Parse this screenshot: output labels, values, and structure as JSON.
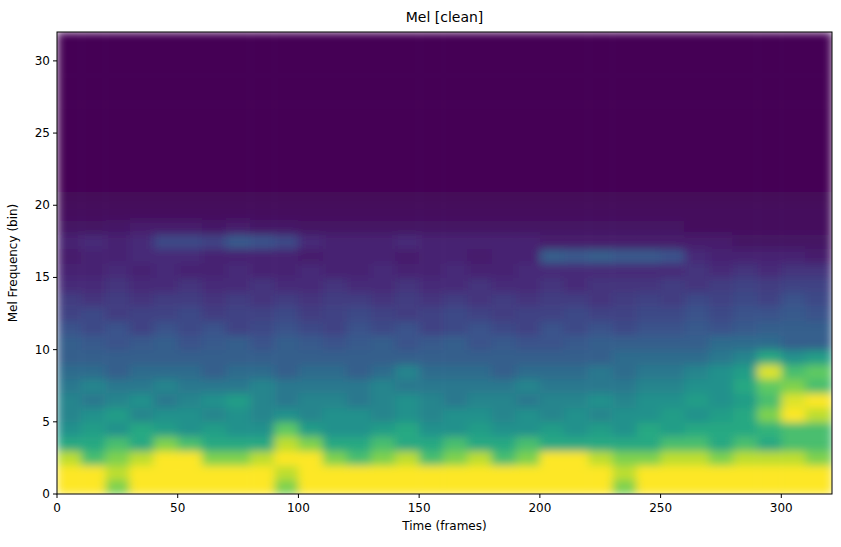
{
  "chart_data": {
    "type": "heatmap",
    "title": "Mel [clean]",
    "x_label": "Time (frames)",
    "y_label": "Mel Frequency (bin)",
    "xlim": [
      0,
      321
    ],
    "ylim": [
      0,
      32
    ],
    "xticks": [
      0,
      50,
      100,
      150,
      200,
      250,
      300
    ],
    "yticks": [
      0,
      5,
      10,
      15,
      20,
      25,
      30
    ],
    "zlim": [
      0,
      1
    ],
    "x_edges": [
      0,
      10,
      20,
      30,
      40,
      50,
      60,
      70,
      80,
      90,
      100,
      110,
      120,
      130,
      140,
      150,
      160,
      170,
      180,
      190,
      200,
      210,
      220,
      230,
      240,
      250,
      260,
      270,
      280,
      290,
      300,
      310,
      321
    ],
    "values": [
      [
        1,
        1,
        0.8,
        1,
        1,
        1,
        1,
        1,
        1,
        0.8,
        1,
        1,
        1,
        1,
        1,
        1,
        1,
        1,
        1,
        1,
        1,
        1,
        1,
        0.8,
        1,
        1,
        1,
        1,
        1,
        1,
        1,
        1
      ],
      [
        1,
        1,
        0.9,
        1,
        1,
        1,
        1,
        1,
        1,
        0.9,
        1,
        1,
        1,
        1,
        1,
        1,
        1,
        1,
        1,
        1,
        1,
        1,
        1,
        0.9,
        1,
        1,
        1,
        1,
        1,
        1,
        1,
        1
      ],
      [
        0.9,
        0.7,
        0.8,
        0.9,
        1,
        1,
        0.8,
        0.8,
        0.9,
        1,
        1,
        0.8,
        0.7,
        0.8,
        0.9,
        0.7,
        0.8,
        0.9,
        0.7,
        0.8,
        1,
        1,
        0.9,
        0.8,
        0.8,
        0.9,
        0.9,
        0.8,
        0.9,
        0.9,
        0.9,
        0.8
      ],
      [
        0.6,
        0.6,
        0.7,
        0.6,
        0.8,
        0.7,
        0.6,
        0.6,
        0.6,
        0.9,
        0.8,
        0.6,
        0.6,
        0.7,
        0.6,
        0.6,
        0.7,
        0.6,
        0.6,
        0.7,
        0.6,
        0.6,
        0.6,
        0.6,
        0.6,
        0.7,
        0.7,
        0.6,
        0.7,
        0.6,
        0.7,
        0.7
      ],
      [
        0.5,
        0.55,
        0.5,
        0.6,
        0.55,
        0.5,
        0.55,
        0.5,
        0.5,
        0.75,
        0.55,
        0.5,
        0.5,
        0.55,
        0.6,
        0.5,
        0.5,
        0.55,
        0.5,
        0.5,
        0.55,
        0.5,
        0.55,
        0.5,
        0.6,
        0.55,
        0.6,
        0.6,
        0.6,
        0.65,
        0.7,
        0.7
      ],
      [
        0.45,
        0.5,
        0.55,
        0.45,
        0.5,
        0.5,
        0.45,
        0.5,
        0.45,
        0.5,
        0.45,
        0.5,
        0.5,
        0.45,
        0.5,
        0.45,
        0.5,
        0.5,
        0.45,
        0.5,
        0.45,
        0.5,
        0.45,
        0.5,
        0.5,
        0.55,
        0.5,
        0.55,
        0.6,
        0.8,
        1,
        0.9
      ],
      [
        0.45,
        0.4,
        0.45,
        0.5,
        0.4,
        0.45,
        0.5,
        0.55,
        0.45,
        0.4,
        0.45,
        0.45,
        0.4,
        0.45,
        0.5,
        0.45,
        0.4,
        0.45,
        0.45,
        0.4,
        0.45,
        0.45,
        0.5,
        0.45,
        0.5,
        0.5,
        0.55,
        0.5,
        0.55,
        0.7,
        0.95,
        1
      ],
      [
        0.4,
        0.45,
        0.4,
        0.4,
        0.45,
        0.4,
        0.4,
        0.4,
        0.45,
        0.4,
        0.4,
        0.4,
        0.4,
        0.45,
        0.4,
        0.4,
        0.4,
        0.4,
        0.4,
        0.45,
        0.4,
        0.4,
        0.4,
        0.4,
        0.45,
        0.45,
        0.5,
        0.5,
        0.6,
        0.75,
        0.8,
        0.7
      ],
      [
        0.35,
        0.35,
        0.3,
        0.35,
        0.35,
        0.35,
        0.3,
        0.35,
        0.35,
        0.3,
        0.35,
        0.35,
        0.3,
        0.35,
        0.45,
        0.35,
        0.35,
        0.35,
        0.3,
        0.35,
        0.35,
        0.35,
        0.4,
        0.35,
        0.4,
        0.4,
        0.45,
        0.5,
        0.55,
        0.95,
        0.7,
        0.75
      ],
      [
        0.3,
        0.3,
        0.3,
        0.3,
        0.3,
        0.3,
        0.3,
        0.3,
        0.3,
        0.3,
        0.3,
        0.3,
        0.3,
        0.3,
        0.3,
        0.3,
        0.3,
        0.3,
        0.3,
        0.3,
        0.3,
        0.3,
        0.3,
        0.35,
        0.35,
        0.35,
        0.35,
        0.4,
        0.45,
        0.6,
        0.5,
        0.55
      ],
      [
        0.3,
        0.28,
        0.25,
        0.28,
        0.3,
        0.25,
        0.28,
        0.3,
        0.25,
        0.3,
        0.28,
        0.25,
        0.28,
        0.3,
        0.25,
        0.28,
        0.3,
        0.25,
        0.28,
        0.25,
        0.25,
        0.28,
        0.3,
        0.3,
        0.3,
        0.3,
        0.3,
        0.35,
        0.35,
        0.35,
        0.3,
        0.3
      ],
      [
        0.25,
        0.22,
        0.25,
        0.2,
        0.25,
        0.22,
        0.25,
        0.2,
        0.22,
        0.25,
        0.22,
        0.2,
        0.25,
        0.22,
        0.25,
        0.2,
        0.22,
        0.25,
        0.22,
        0.2,
        0.25,
        0.22,
        0.25,
        0.22,
        0.25,
        0.25,
        0.28,
        0.25,
        0.28,
        0.3,
        0.3,
        0.3
      ],
      [
        0.2,
        0.22,
        0.18,
        0.2,
        0.2,
        0.22,
        0.18,
        0.2,
        0.2,
        0.22,
        0.18,
        0.2,
        0.22,
        0.2,
        0.18,
        0.2,
        0.22,
        0.2,
        0.18,
        0.2,
        0.2,
        0.22,
        0.2,
        0.2,
        0.22,
        0.22,
        0.25,
        0.22,
        0.25,
        0.25,
        0.28,
        0.25
      ],
      [
        0.18,
        0.15,
        0.18,
        0.15,
        0.18,
        0.18,
        0.15,
        0.18,
        0.15,
        0.18,
        0.15,
        0.18,
        0.18,
        0.15,
        0.18,
        0.15,
        0.18,
        0.15,
        0.18,
        0.15,
        0.18,
        0.18,
        0.15,
        0.18,
        0.2,
        0.18,
        0.22,
        0.2,
        0.22,
        0.2,
        0.25,
        0.22
      ],
      [
        0.12,
        0.12,
        0.15,
        0.12,
        0.12,
        0.15,
        0.12,
        0.12,
        0.15,
        0.12,
        0.12,
        0.15,
        0.12,
        0.12,
        0.15,
        0.12,
        0.12,
        0.15,
        0.12,
        0.12,
        0.15,
        0.12,
        0.15,
        0.15,
        0.15,
        0.18,
        0.15,
        0.18,
        0.2,
        0.18,
        0.2,
        0.2
      ],
      [
        0.1,
        0.1,
        0.12,
        0.1,
        0.12,
        0.1,
        0.1,
        0.12,
        0.1,
        0.1,
        0.12,
        0.1,
        0.1,
        0.12,
        0.1,
        0.1,
        0.12,
        0.1,
        0.1,
        0.12,
        0.12,
        0.12,
        0.12,
        0.12,
        0.12,
        0.12,
        0.15,
        0.12,
        0.15,
        0.12,
        0.15,
        0.15
      ],
      [
        0.08,
        0.1,
        0.1,
        0.12,
        0.12,
        0.12,
        0.1,
        0.1,
        0.1,
        0.1,
        0.08,
        0.1,
        0.1,
        0.1,
        0.08,
        0.1,
        0.1,
        0.08,
        0.1,
        0.1,
        0.3,
        0.28,
        0.3,
        0.28,
        0.28,
        0.25,
        0.12,
        0.1,
        0.1,
        0.1,
        0.1,
        0.08
      ],
      [
        0.1,
        0.12,
        0.1,
        0.12,
        0.22,
        0.22,
        0.2,
        0.28,
        0.25,
        0.22,
        0.12,
        0.1,
        0.1,
        0.1,
        0.12,
        0.1,
        0.1,
        0.1,
        0.1,
        0.1,
        0.08,
        0.08,
        0.08,
        0.08,
        0.08,
        0.08,
        0.08,
        0.08,
        0.05,
        0.05,
        0.05,
        0.05
      ],
      [
        0.05,
        0.05,
        0.06,
        0.08,
        0.08,
        0.08,
        0.06,
        0.08,
        0.06,
        0.06,
        0.05,
        0.05,
        0.05,
        0.05,
        0.05,
        0.05,
        0.05,
        0.05,
        0.05,
        0.05,
        0.05,
        0.05,
        0.05,
        0.05,
        0.05,
        0.05,
        0.03,
        0.03,
        0.03,
        0.03,
        0.03,
        0.03
      ],
      [
        0.03,
        0.03,
        0.03,
        0.03,
        0.03,
        0.03,
        0.03,
        0.03,
        0.03,
        0.03,
        0.03,
        0.03,
        0.03,
        0.03,
        0.03,
        0.03,
        0.03,
        0.03,
        0.03,
        0.03,
        0.03,
        0.03,
        0.03,
        0.03,
        0.03,
        0.03,
        0.03,
        0.03,
        0.03,
        0.03,
        0.03,
        0.03
      ],
      [
        0.02,
        0.02,
        0.02,
        0.02,
        0.02,
        0.02,
        0.02,
        0.02,
        0.02,
        0.02,
        0.02,
        0.02,
        0.02,
        0.02,
        0.02,
        0.02,
        0.02,
        0.02,
        0.02,
        0.02,
        0.02,
        0.02,
        0.02,
        0.02,
        0.02,
        0.02,
        0.02,
        0.02,
        0.02,
        0.02,
        0.02,
        0.02
      ],
      [
        0,
        0,
        0,
        0,
        0,
        0,
        0,
        0,
        0,
        0,
        0,
        0,
        0,
        0,
        0,
        0,
        0,
        0,
        0,
        0,
        0,
        0,
        0,
        0,
        0,
        0,
        0,
        0,
        0,
        0,
        0,
        0
      ],
      [
        0,
        0,
        0,
        0,
        0,
        0,
        0,
        0,
        0,
        0,
        0,
        0,
        0,
        0,
        0,
        0,
        0,
        0,
        0,
        0,
        0,
        0,
        0,
        0,
        0,
        0,
        0,
        0,
        0,
        0,
        0,
        0
      ],
      [
        0,
        0,
        0,
        0,
        0,
        0,
        0,
        0,
        0,
        0,
        0,
        0,
        0,
        0,
        0,
        0,
        0,
        0,
        0,
        0,
        0,
        0,
        0,
        0,
        0,
        0,
        0,
        0,
        0,
        0,
        0,
        0
      ],
      [
        0,
        0,
        0,
        0,
        0,
        0,
        0,
        0,
        0,
        0,
        0,
        0,
        0,
        0,
        0,
        0,
        0,
        0,
        0,
        0,
        0,
        0,
        0,
        0,
        0,
        0,
        0,
        0,
        0,
        0,
        0,
        0
      ],
      [
        0,
        0,
        0,
        0,
        0,
        0,
        0,
        0,
        0,
        0,
        0,
        0,
        0,
        0,
        0,
        0,
        0,
        0,
        0,
        0,
        0,
        0,
        0,
        0,
        0,
        0,
        0,
        0,
        0,
        0,
        0,
        0
      ],
      [
        0,
        0,
        0,
        0,
        0,
        0,
        0,
        0,
        0,
        0,
        0,
        0,
        0,
        0,
        0,
        0,
        0,
        0,
        0,
        0,
        0,
        0,
        0,
        0,
        0,
        0,
        0,
        0,
        0,
        0,
        0,
        0
      ],
      [
        0,
        0,
        0,
        0,
        0,
        0,
        0,
        0,
        0,
        0,
        0,
        0,
        0,
        0,
        0,
        0,
        0,
        0,
        0,
        0,
        0,
        0,
        0,
        0,
        0,
        0,
        0,
        0,
        0,
        0,
        0,
        0
      ],
      [
        0,
        0,
        0,
        0,
        0,
        0,
        0,
        0,
        0,
        0,
        0,
        0,
        0,
        0,
        0,
        0,
        0,
        0,
        0,
        0,
        0,
        0,
        0,
        0,
        0,
        0,
        0,
        0,
        0,
        0,
        0,
        0
      ],
      [
        0,
        0,
        0,
        0,
        0,
        0,
        0,
        0,
        0,
        0,
        0,
        0,
        0,
        0,
        0,
        0,
        0,
        0,
        0,
        0,
        0,
        0,
        0,
        0,
        0,
        0,
        0,
        0,
        0,
        0,
        0,
        0
      ],
      [
        0,
        0,
        0,
        0,
        0,
        0,
        0,
        0,
        0,
        0,
        0,
        0,
        0,
        0,
        0,
        0,
        0,
        0,
        0,
        0,
        0,
        0,
        0,
        0,
        0,
        0,
        0,
        0,
        0,
        0,
        0,
        0
      ],
      [
        0,
        0,
        0,
        0,
        0,
        0,
        0,
        0,
        0,
        0,
        0,
        0,
        0,
        0,
        0,
        0,
        0,
        0,
        0,
        0,
        0,
        0,
        0,
        0,
        0,
        0,
        0,
        0,
        0,
        0,
        0,
        0
      ]
    ]
  }
}
